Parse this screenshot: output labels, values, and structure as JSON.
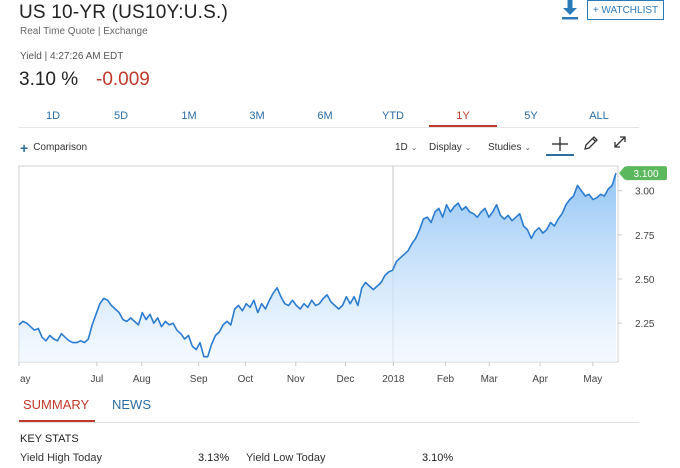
{
  "header": {
    "title": "US 10-YR (US10Y:U.S.)",
    "subtitle": "Real Time Quote | Exchange",
    "watchlist_label": "+ WATCHLIST"
  },
  "quote": {
    "yield_label": "Yield | 4:27:26 AM EDT",
    "value": "3.10 %",
    "change": "-0.009",
    "change_color": "#c0392b"
  },
  "range_tabs": [
    {
      "label": "1D"
    },
    {
      "label": "5D"
    },
    {
      "label": "1M"
    },
    {
      "label": "3M"
    },
    {
      "label": "6M"
    },
    {
      "label": "YTD"
    },
    {
      "label": "1Y",
      "active": true
    },
    {
      "label": "5Y"
    },
    {
      "label": "ALL"
    }
  ],
  "toolbar": {
    "comparison": "Comparison",
    "interval": "1D",
    "display": "Display",
    "studies": "Studies"
  },
  "chart_data": {
    "type": "area",
    "x_ticks": [
      "ay",
      "Jul",
      "Aug",
      "Sep",
      "Oct",
      "Nov",
      "Dec",
      "2018",
      "Feb",
      "Mar",
      "Apr",
      "May"
    ],
    "y_ticks": [
      "3.00",
      "2.75",
      "2.50",
      "2.25"
    ],
    "ylim": [
      2.03,
      3.14
    ],
    "last_value_label": "3.100",
    "accent_color": "#2b7bcf",
    "badge_color": "#5cb85c",
    "series": [
      {
        "values": [
          2.24,
          2.26,
          2.25,
          2.23,
          2.21,
          2.22,
          2.17,
          2.15,
          2.18,
          2.16,
          2.15,
          2.19,
          2.17,
          2.15,
          2.14,
          2.14,
          2.15,
          2.14,
          2.16,
          2.24,
          2.3,
          2.36,
          2.39,
          2.38,
          2.35,
          2.33,
          2.31,
          2.27,
          2.26,
          2.28,
          2.26,
          2.24,
          2.31,
          2.27,
          2.3,
          2.25,
          2.28,
          2.23,
          2.26,
          2.24,
          2.25,
          2.21,
          2.19,
          2.16,
          2.18,
          2.12,
          2.1,
          2.14,
          2.06,
          2.06,
          2.13,
          2.18,
          2.2,
          2.24,
          2.26,
          2.24,
          2.33,
          2.35,
          2.32,
          2.36,
          2.34,
          2.38,
          2.31,
          2.36,
          2.33,
          2.38,
          2.42,
          2.45,
          2.4,
          2.36,
          2.35,
          2.38,
          2.35,
          2.33,
          2.36,
          2.34,
          2.38,
          2.35,
          2.36,
          2.39,
          2.41,
          2.37,
          2.35,
          2.33,
          2.35,
          2.4,
          2.36,
          2.4,
          2.35,
          2.45,
          2.48,
          2.46,
          2.44,
          2.46,
          2.48,
          2.52,
          2.54,
          2.55,
          2.6,
          2.62,
          2.64,
          2.66,
          2.7,
          2.73,
          2.78,
          2.84,
          2.85,
          2.82,
          2.88,
          2.9,
          2.85,
          2.92,
          2.88,
          2.91,
          2.93,
          2.89,
          2.91,
          2.88,
          2.87,
          2.85,
          2.88,
          2.9,
          2.85,
          2.88,
          2.92,
          2.86,
          2.84,
          2.86,
          2.83,
          2.85,
          2.87,
          2.8,
          2.78,
          2.73,
          2.77,
          2.79,
          2.76,
          2.78,
          2.82,
          2.8,
          2.84,
          2.87,
          2.92,
          2.95,
          2.97,
          3.03,
          3.0,
          2.97,
          2.98,
          2.95,
          2.96,
          2.98,
          2.97,
          3.01,
          3.03,
          3.1
        ]
      }
    ]
  },
  "section_tabs": [
    {
      "label": "SUMMARY",
      "active": true
    },
    {
      "label": "NEWS",
      "active": false
    }
  ],
  "key_stats": {
    "heading": "KEY STATS",
    "items": [
      {
        "label": "Yield High Today",
        "value": "3.13%"
      },
      {
        "label": "Yield Low Today",
        "value": "3.10%"
      }
    ]
  }
}
